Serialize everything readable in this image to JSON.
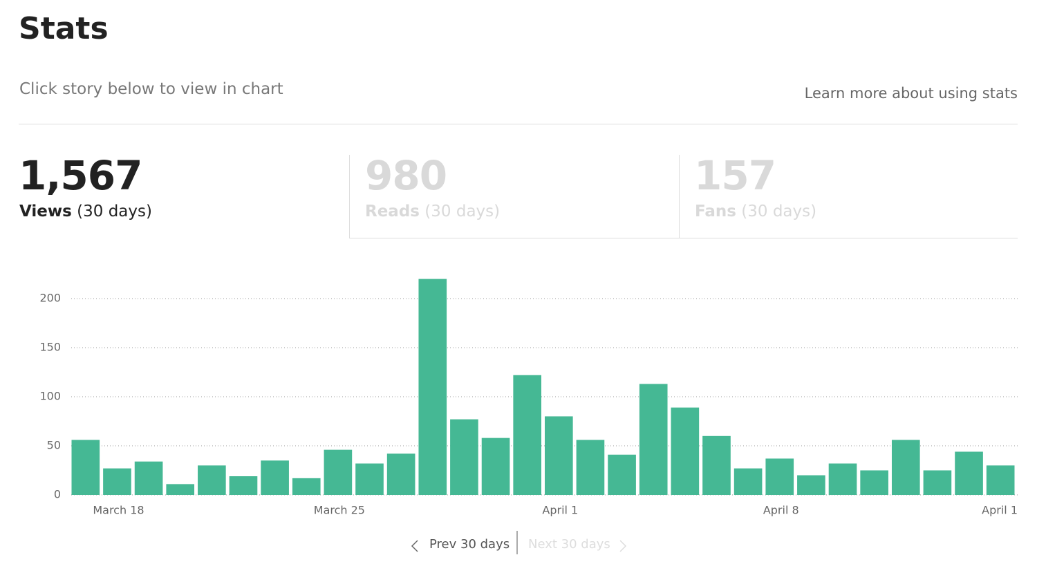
{
  "header": {
    "title": "Stats",
    "subtitle": "Click story below to view in chart",
    "link": "Learn more about using stats"
  },
  "metrics": [
    {
      "value": "1,567",
      "label": "Views",
      "period": "(30 days)"
    },
    {
      "value": "980",
      "label": "Reads",
      "period": "(30 days)"
    },
    {
      "value": "157",
      "label": "Fans",
      "period": "(30 days)"
    }
  ],
  "chart_data": {
    "type": "bar",
    "color": "#45b894",
    "grid": true,
    "categories": [
      null,
      "March 18",
      null,
      null,
      null,
      null,
      null,
      null,
      "March 25",
      null,
      null,
      null,
      null,
      null,
      null,
      "April 1",
      null,
      null,
      null,
      null,
      null,
      null,
      "April 8",
      null,
      null,
      null,
      null,
      null,
      null,
      "April 1"
    ],
    "values": [
      56,
      27,
      34,
      11,
      30,
      19,
      35,
      17,
      46,
      32,
      42,
      220,
      77,
      58,
      122,
      80,
      56,
      41,
      113,
      89,
      60,
      27,
      37,
      20,
      32,
      25,
      56,
      25,
      44,
      30
    ],
    "ylim": [
      0,
      220
    ],
    "yticks": [
      0,
      50,
      100,
      150,
      200
    ]
  },
  "pagination": {
    "prev": "Prev 30 days",
    "next": "Next 30 days"
  }
}
